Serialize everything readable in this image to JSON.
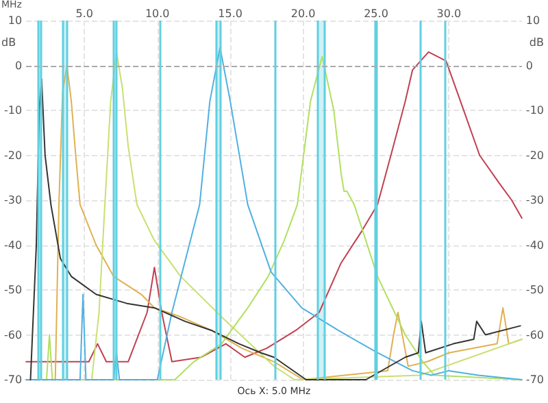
{
  "chart_data": {
    "type": "line",
    "xlabel": "MHz",
    "ylabel": "dB",
    "y2label": "dB",
    "annotations": [
      "Ось X: 5.0 MHz"
    ],
    "xlim": [
      1,
      35
    ],
    "xticks": [
      {
        "value": 5,
        "label": "5.0"
      },
      {
        "value": 10,
        "label": "10.0"
      },
      {
        "value": 15,
        "label": "15.0"
      },
      {
        "value": 20,
        "label": "20.0"
      },
      {
        "value": 25,
        "label": "25.0"
      },
      {
        "value": 30,
        "label": "30.0"
      }
    ],
    "ylim": [
      -70,
      10
    ],
    "yticks": [
      -70,
      -60,
      -50,
      -40,
      -30,
      -20,
      -10,
      0,
      10
    ],
    "y2lim": [
      -70,
      10
    ],
    "y2ticks": [
      -70,
      -60,
      -50,
      -40,
      -30,
      -20,
      -10,
      0,
      10
    ],
    "grid": true,
    "marker": "none",
    "line_style": "solid",
    "ref_lines": [
      {
        "axis": "y",
        "value": 0,
        "label": null,
        "color": "#aaaaaa",
        "line_style": "dashed"
      },
      {
        "axis": "x",
        "value": 10.2,
        "label": null,
        "color": "#60d0e0"
      },
      {
        "axis": "x",
        "value": 18.1,
        "label": null,
        "color": "#60d0e0"
      },
      {
        "axis": "x",
        "value": 28.0,
        "label": null,
        "color": "#60d0e0"
      },
      {
        "axis": "x",
        "value": 29.7,
        "label": null,
        "color": "#60d0e0"
      }
    ],
    "bands": [
      {
        "axis": "x",
        "from": 1.8,
        "to": 2.0,
        "label": null,
        "color": "#60d0e0"
      },
      {
        "axis": "x",
        "from": 3.5,
        "to": 3.8,
        "label": null,
        "color": "#60d0e0"
      },
      {
        "axis": "x",
        "from": 7.0,
        "to": 7.2,
        "label": null,
        "color": "#60d0e0"
      },
      {
        "axis": "x",
        "from": 14.0,
        "to": 14.35,
        "label": null,
        "color": "#60d0e0"
      },
      {
        "axis": "x",
        "from": 21.0,
        "to": 21.45,
        "label": null,
        "color": "#60d0e0"
      },
      {
        "axis": "x",
        "from": 24.89,
        "to": 24.99,
        "label": null,
        "color": "#60d0e0"
      }
    ],
    "series": [
      {
        "color": "#c04050",
        "x": [
          1,
          3,
          5.3,
          5.9,
          6.5,
          8,
          9.3,
          9.8,
          10.3,
          11,
          13,
          14.7,
          16,
          17.5,
          18,
          19.5,
          21.1,
          22.6,
          24,
          25.1,
          26.1,
          27,
          27.5,
          28.6,
          29.8,
          30.9,
          32.1,
          33.4,
          34.3,
          35
        ],
        "values": [
          -66,
          -66,
          -66,
          -62,
          -66,
          -66,
          -55,
          -45,
          -55,
          -66,
          -65,
          -62,
          -65,
          -63,
          -62,
          -59,
          -55,
          -44,
          -37,
          -31,
          -19,
          -8,
          -1,
          3,
          1,
          -9,
          -20,
          -26,
          -30,
          -34
        ]
      },
      {
        "color": "#e0b050",
        "x": [
          1,
          3.0,
          3.25,
          3.5,
          3.8,
          4.1,
          4.4,
          4.7,
          5.8,
          7,
          8.9,
          9.8,
          11.6,
          13.7,
          15.8,
          18,
          20,
          25.8,
          26.2,
          26.5,
          26.8,
          27.2,
          28.5,
          30,
          33.3,
          33.7,
          34.1,
          35
        ],
        "values": [
          -70,
          -70,
          -31,
          -6,
          0,
          -8,
          -20,
          -31,
          -40,
          -47,
          -51,
          -54,
          -56,
          -59,
          -63,
          -66,
          -70,
          -68,
          -60,
          -55,
          -60,
          -67,
          -66,
          -64,
          -62,
          -54,
          -62,
          -61
        ]
      },
      {
        "color": "#c8e070",
        "x": [
          1,
          5.5,
          6.0,
          6.4,
          6.8,
          7.2,
          7.6,
          8.0,
          8.6,
          9.8,
          11.6,
          14.4,
          18,
          19.4,
          28,
          35
        ],
        "values": [
          -70,
          -70,
          -55,
          -31,
          -8,
          3,
          -5,
          -18,
          -31,
          -39,
          -47,
          -56,
          -67,
          -70,
          -69,
          -61
        ]
      },
      {
        "color": "#b0e060",
        "x": [
          1,
          2.4,
          2.6,
          2.8,
          11.2,
          12.5,
          14.4,
          16.2,
          17.6,
          18.7,
          19.6,
          20.5,
          21.3,
          22.1,
          22.6,
          22.8,
          23.0,
          23.5,
          25.1,
          27,
          28.2,
          29,
          35
        ],
        "values": [
          -70,
          -70,
          -60,
          -70,
          -70,
          -66,
          -62,
          -54,
          -47,
          -39,
          -31,
          -8,
          2,
          -10,
          -24,
          -28,
          -28,
          -31,
          -47,
          -60,
          -66,
          -69,
          -70
        ]
      },
      {
        "color": "#50b0e0",
        "x": [
          1,
          4.7,
          4.9,
          5.1,
          7,
          7.2,
          7.4,
          10,
          10.2,
          11,
          12.9,
          13.6,
          14.3,
          15,
          16.2,
          17.8,
          19.9,
          22.4,
          25.1,
          27.5,
          28.8,
          30,
          32,
          35
        ],
        "values": [
          -70,
          -70,
          -51,
          -70,
          -70,
          -64,
          -70,
          -70,
          -67,
          -55,
          -31,
          -8,
          4,
          -8,
          -31,
          -46,
          -54,
          -59,
          -64,
          -68,
          -69,
          -68,
          -69,
          -70
        ]
      },
      {
        "color": "#333333",
        "x": [
          1.3,
          1.7,
          1.9,
          2.06,
          2.3,
          2.7,
          3.35,
          4.1,
          5.8,
          7.9,
          9.8,
          11.9,
          13.7,
          15.6,
          17.1,
          18,
          20.2,
          24.3,
          27,
          27.9,
          28.1,
          28.4,
          30.3,
          31.7,
          31.9,
          32.5,
          34.9
        ],
        "values": [
          -70,
          -40,
          -10,
          -3,
          -20,
          -31,
          -43,
          -47,
          -51,
          -53,
          -54,
          -57,
          -59,
          -62,
          -64,
          -65,
          -70,
          -70,
          -65,
          -64,
          -57,
          -64,
          -62,
          -61,
          -57,
          -60,
          -58
        ]
      }
    ]
  }
}
